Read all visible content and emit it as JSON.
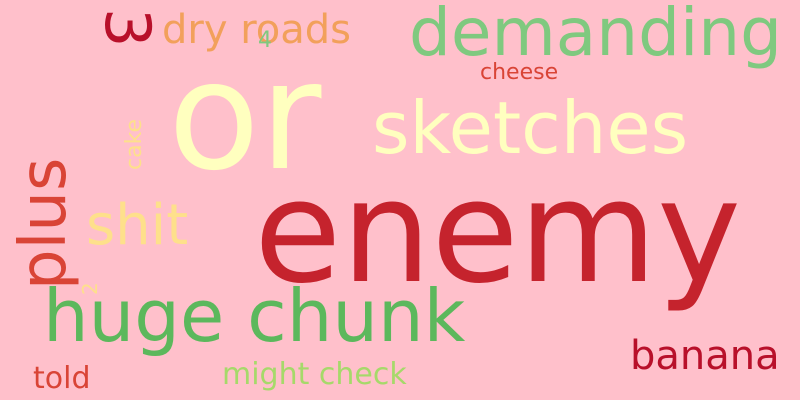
{
  "words": [
    {
      "text": "or",
      "color": "#ffffbf"
    },
    {
      "text": "enemy",
      "color": "#c5232d"
    },
    {
      "text": "sketches",
      "color": "#ffffbf"
    },
    {
      "text": "demanding",
      "color": "#7fc97f"
    },
    {
      "text": "huge chunk",
      "color": "#5cb85c"
    },
    {
      "text": "plus",
      "color": "#d94436"
    },
    {
      "text": "shit",
      "color": "#fee08b"
    },
    {
      "text": "3",
      "color": "#b8102a"
    },
    {
      "text": "dry roads",
      "color": "#f2a05b"
    },
    {
      "text": "4",
      "color": "#7fc97f"
    },
    {
      "text": "cheese",
      "color": "#d94436"
    },
    {
      "text": "cake",
      "color": "#fee08b"
    },
    {
      "text": "2",
      "color": "#fee08b"
    },
    {
      "text": "banana",
      "color": "#b8102a"
    },
    {
      "text": "told",
      "color": "#d94436"
    },
    {
      "text": "might check",
      "color": "#a6d96a"
    }
  ]
}
